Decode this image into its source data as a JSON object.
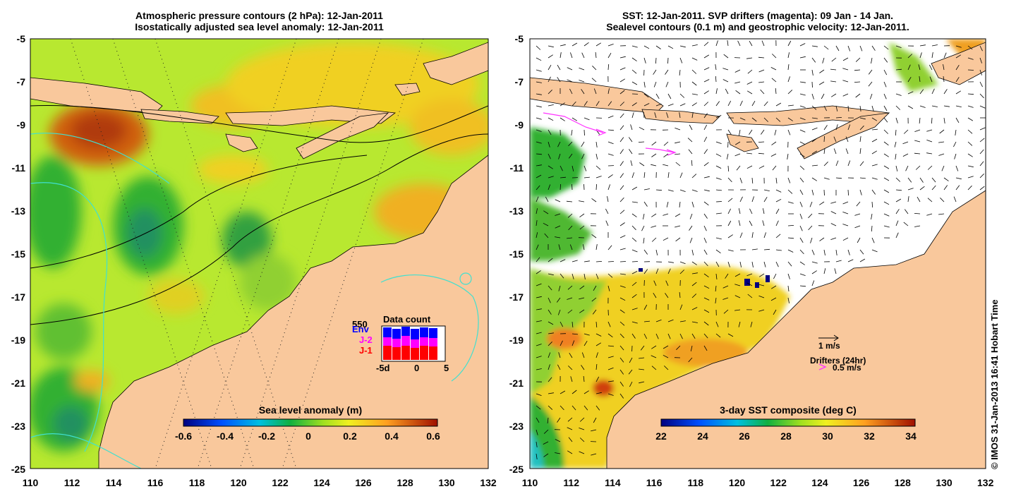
{
  "left_panel": {
    "title_line1": "Atmospheric pressure contours (2 hPa): 12-Jan-2011",
    "title_line2": "Isostatically adjusted sea level anomaly: 12-Jan-2011",
    "y_ticks": [
      "-5",
      "-7",
      "-9",
      "-11",
      "-13",
      "-15",
      "-17",
      "-19",
      "-21",
      "-23",
      "-25"
    ],
    "x_ticks": [
      "110",
      "112",
      "114",
      "116",
      "118",
      "120",
      "122",
      "124",
      "126",
      "128",
      "130",
      "132"
    ],
    "colorbar": {
      "title": "Sea level anomaly (m)",
      "labels": [
        "-0.6",
        "-0.4",
        "-0.2",
        "0",
        "0.2",
        "0.4",
        "0.6"
      ]
    },
    "data_count": {
      "title": "Data count",
      "max_label": "550",
      "legend": [
        "Env",
        "J-2",
        "J-1"
      ],
      "x_labels": [
        "-5d",
        "0",
        "5"
      ],
      "colors": {
        "Env": "#0000ff",
        "J-2": "#ff00ff",
        "J-1": "#ff0000"
      }
    }
  },
  "right_panel": {
    "title_line1": "SST: 12-Jan-2011. SVP drifters (magenta): 09 Jan - 14 Jan.",
    "title_line2": "Sealevel contours (0.1 m) and geostrophic velocity: 12-Jan-2011.",
    "y_ticks": [
      "-5",
      "-7",
      "-9",
      "-11",
      "-13",
      "-15",
      "-17",
      "-19",
      "-21",
      "-23",
      "-25"
    ],
    "x_ticks": [
      "110",
      "112",
      "114",
      "116",
      "118",
      "120",
      "122",
      "124",
      "126",
      "128",
      "130",
      "132"
    ],
    "colorbar": {
      "title": "3-day SST composite (deg C)",
      "labels": [
        "22",
        "24",
        "26",
        "28",
        "30",
        "32",
        "34"
      ]
    },
    "velocity_scale_label": "1 m/s",
    "drifters_label": "Drifters (24hr)",
    "drifter_speed_label": "0.5 m/s"
  },
  "copyright": "© IMOS 31-Jan-2013 16:41 Hobart Time",
  "colors": {
    "land": "#f9c89c",
    "contour_cyan": "#40e0d0",
    "drifter": "#ff33ff"
  }
}
